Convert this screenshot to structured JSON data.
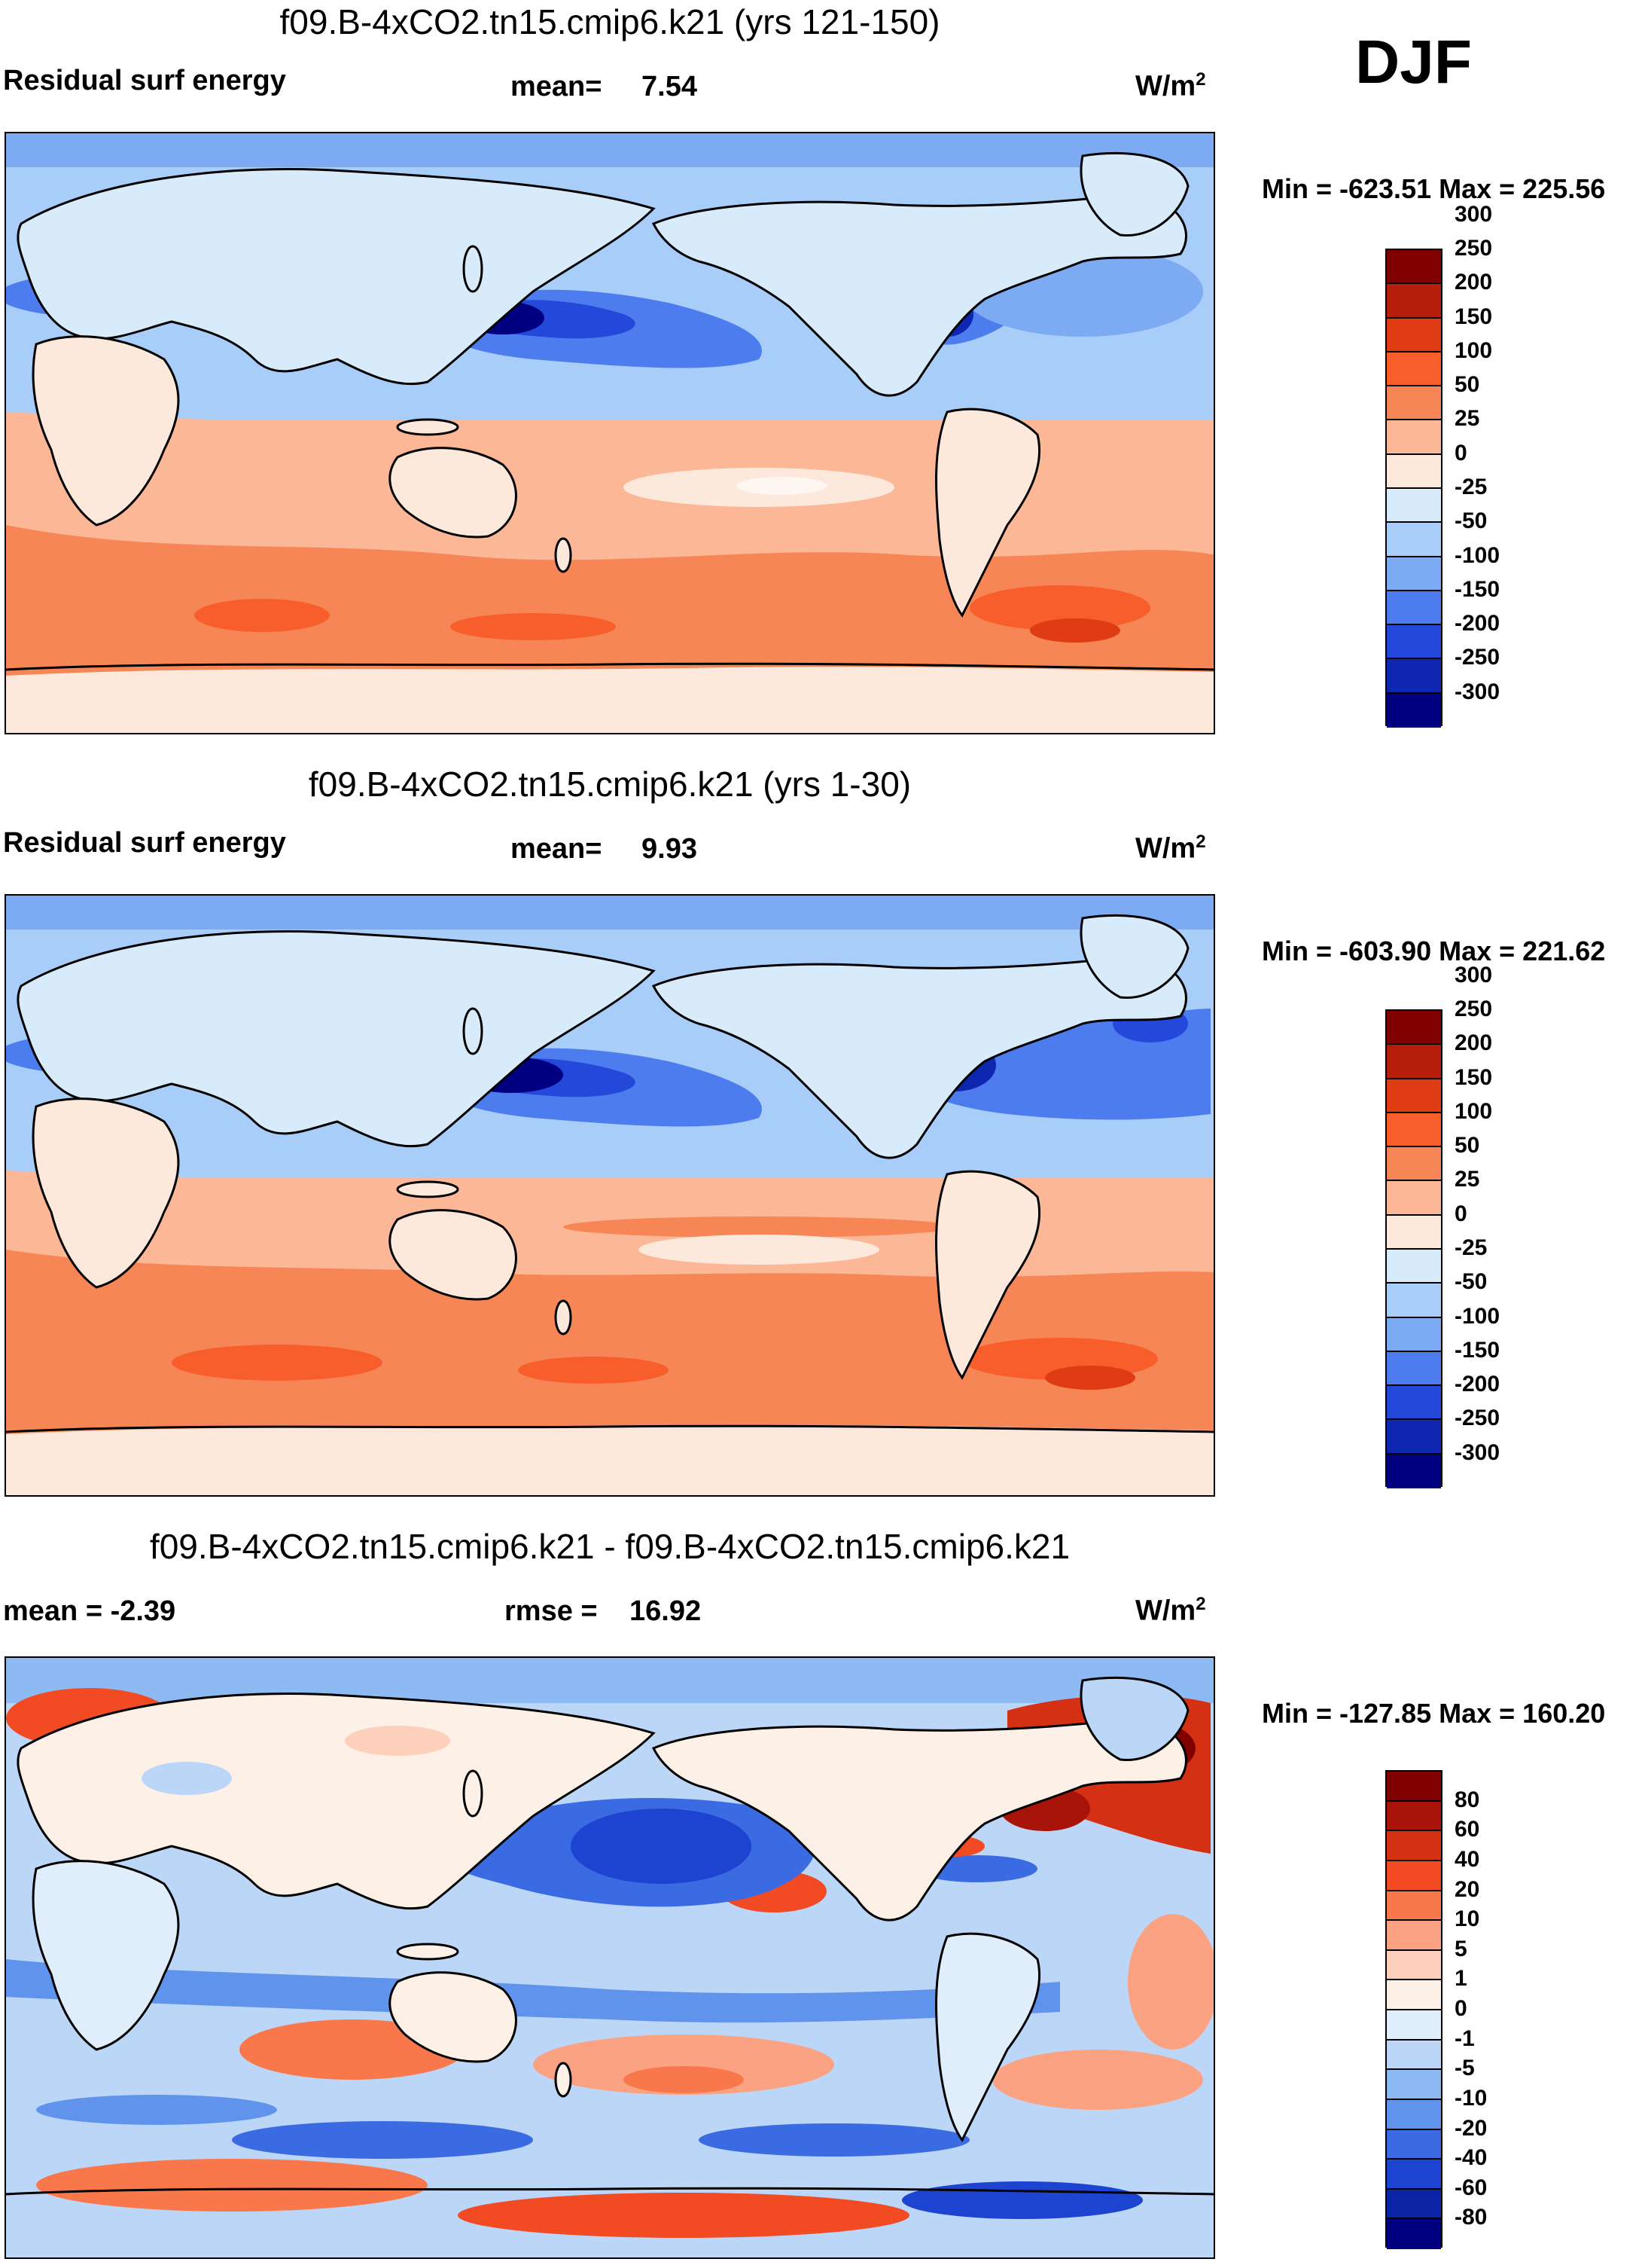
{
  "season": "DJF",
  "panels": [
    {
      "title": "f09.B-4xCO2.tn15.cmip6.k21 (yrs 121-150)",
      "left_label": "Residual surf energy",
      "center_label": "mean=",
      "center_value": "7.54",
      "units_base": "W/m",
      "units_exp": "2",
      "minmax": "Min = -623.51 Max = 225.56",
      "colorbar": {
        "colors": [
          "#800000",
          "#b41e0a",
          "#e03c14",
          "#f85e2c",
          "#f78656",
          "#fbb796",
          "#fde8dc",
          "#d8ebfb",
          "#a8cdf8",
          "#7caaf3",
          "#4d7cee",
          "#2448d9",
          "#0e26b0",
          "#000080"
        ],
        "ticks": [
          "300",
          "250",
          "200",
          "150",
          "100",
          "50",
          "25",
          "0",
          "-25",
          "-50",
          "-100",
          "-150",
          "-200",
          "-250",
          "-300"
        ]
      }
    },
    {
      "title": "f09.B-4xCO2.tn15.cmip6.k21 (yrs 1-30)",
      "left_label": "Residual surf energy",
      "center_label": "mean=",
      "center_value": "9.93",
      "units_base": "W/m",
      "units_exp": "2",
      "minmax": "Min = -603.90 Max = 221.62",
      "colorbar": {
        "colors": [
          "#800000",
          "#b41e0a",
          "#e03c14",
          "#f85e2c",
          "#f78656",
          "#fbb796",
          "#fde8dc",
          "#d8ebfb",
          "#a8cdf8",
          "#7caaf3",
          "#4d7cee",
          "#2448d9",
          "#0e26b0",
          "#000080"
        ],
        "ticks": [
          "300",
          "250",
          "200",
          "150",
          "100",
          "50",
          "25",
          "0",
          "-25",
          "-50",
          "-100",
          "-150",
          "-200",
          "-250",
          "-300"
        ]
      }
    },
    {
      "title": "f09.B-4xCO2.tn15.cmip6.k21 - f09.B-4xCO2.tn15.cmip6.k21",
      "left_label": "mean =  -2.39",
      "center_label": "rmse =",
      "center_value": "16.92",
      "units_base": "W/m",
      "units_exp": "2",
      "minmax": "Min = -127.85 Max = 160.20",
      "colorbar": {
        "colors": [
          "#800000",
          "#a8140a",
          "#d33014",
          "#f24a22",
          "#f8784c",
          "#fba282",
          "#fdd0bc",
          "#fdf0e6",
          "#e0edfb",
          "#bcd6f8",
          "#8ebaf3",
          "#6094ec",
          "#3a6be2",
          "#1d44d0",
          "#0b24a6",
          "#000080"
        ],
        "ticks": [
          "80",
          "60",
          "40",
          "20",
          "10",
          "5",
          "1",
          "0",
          "-1",
          "-5",
          "-10",
          "-20",
          "-40",
          "-60",
          "-80"
        ]
      }
    }
  ]
}
